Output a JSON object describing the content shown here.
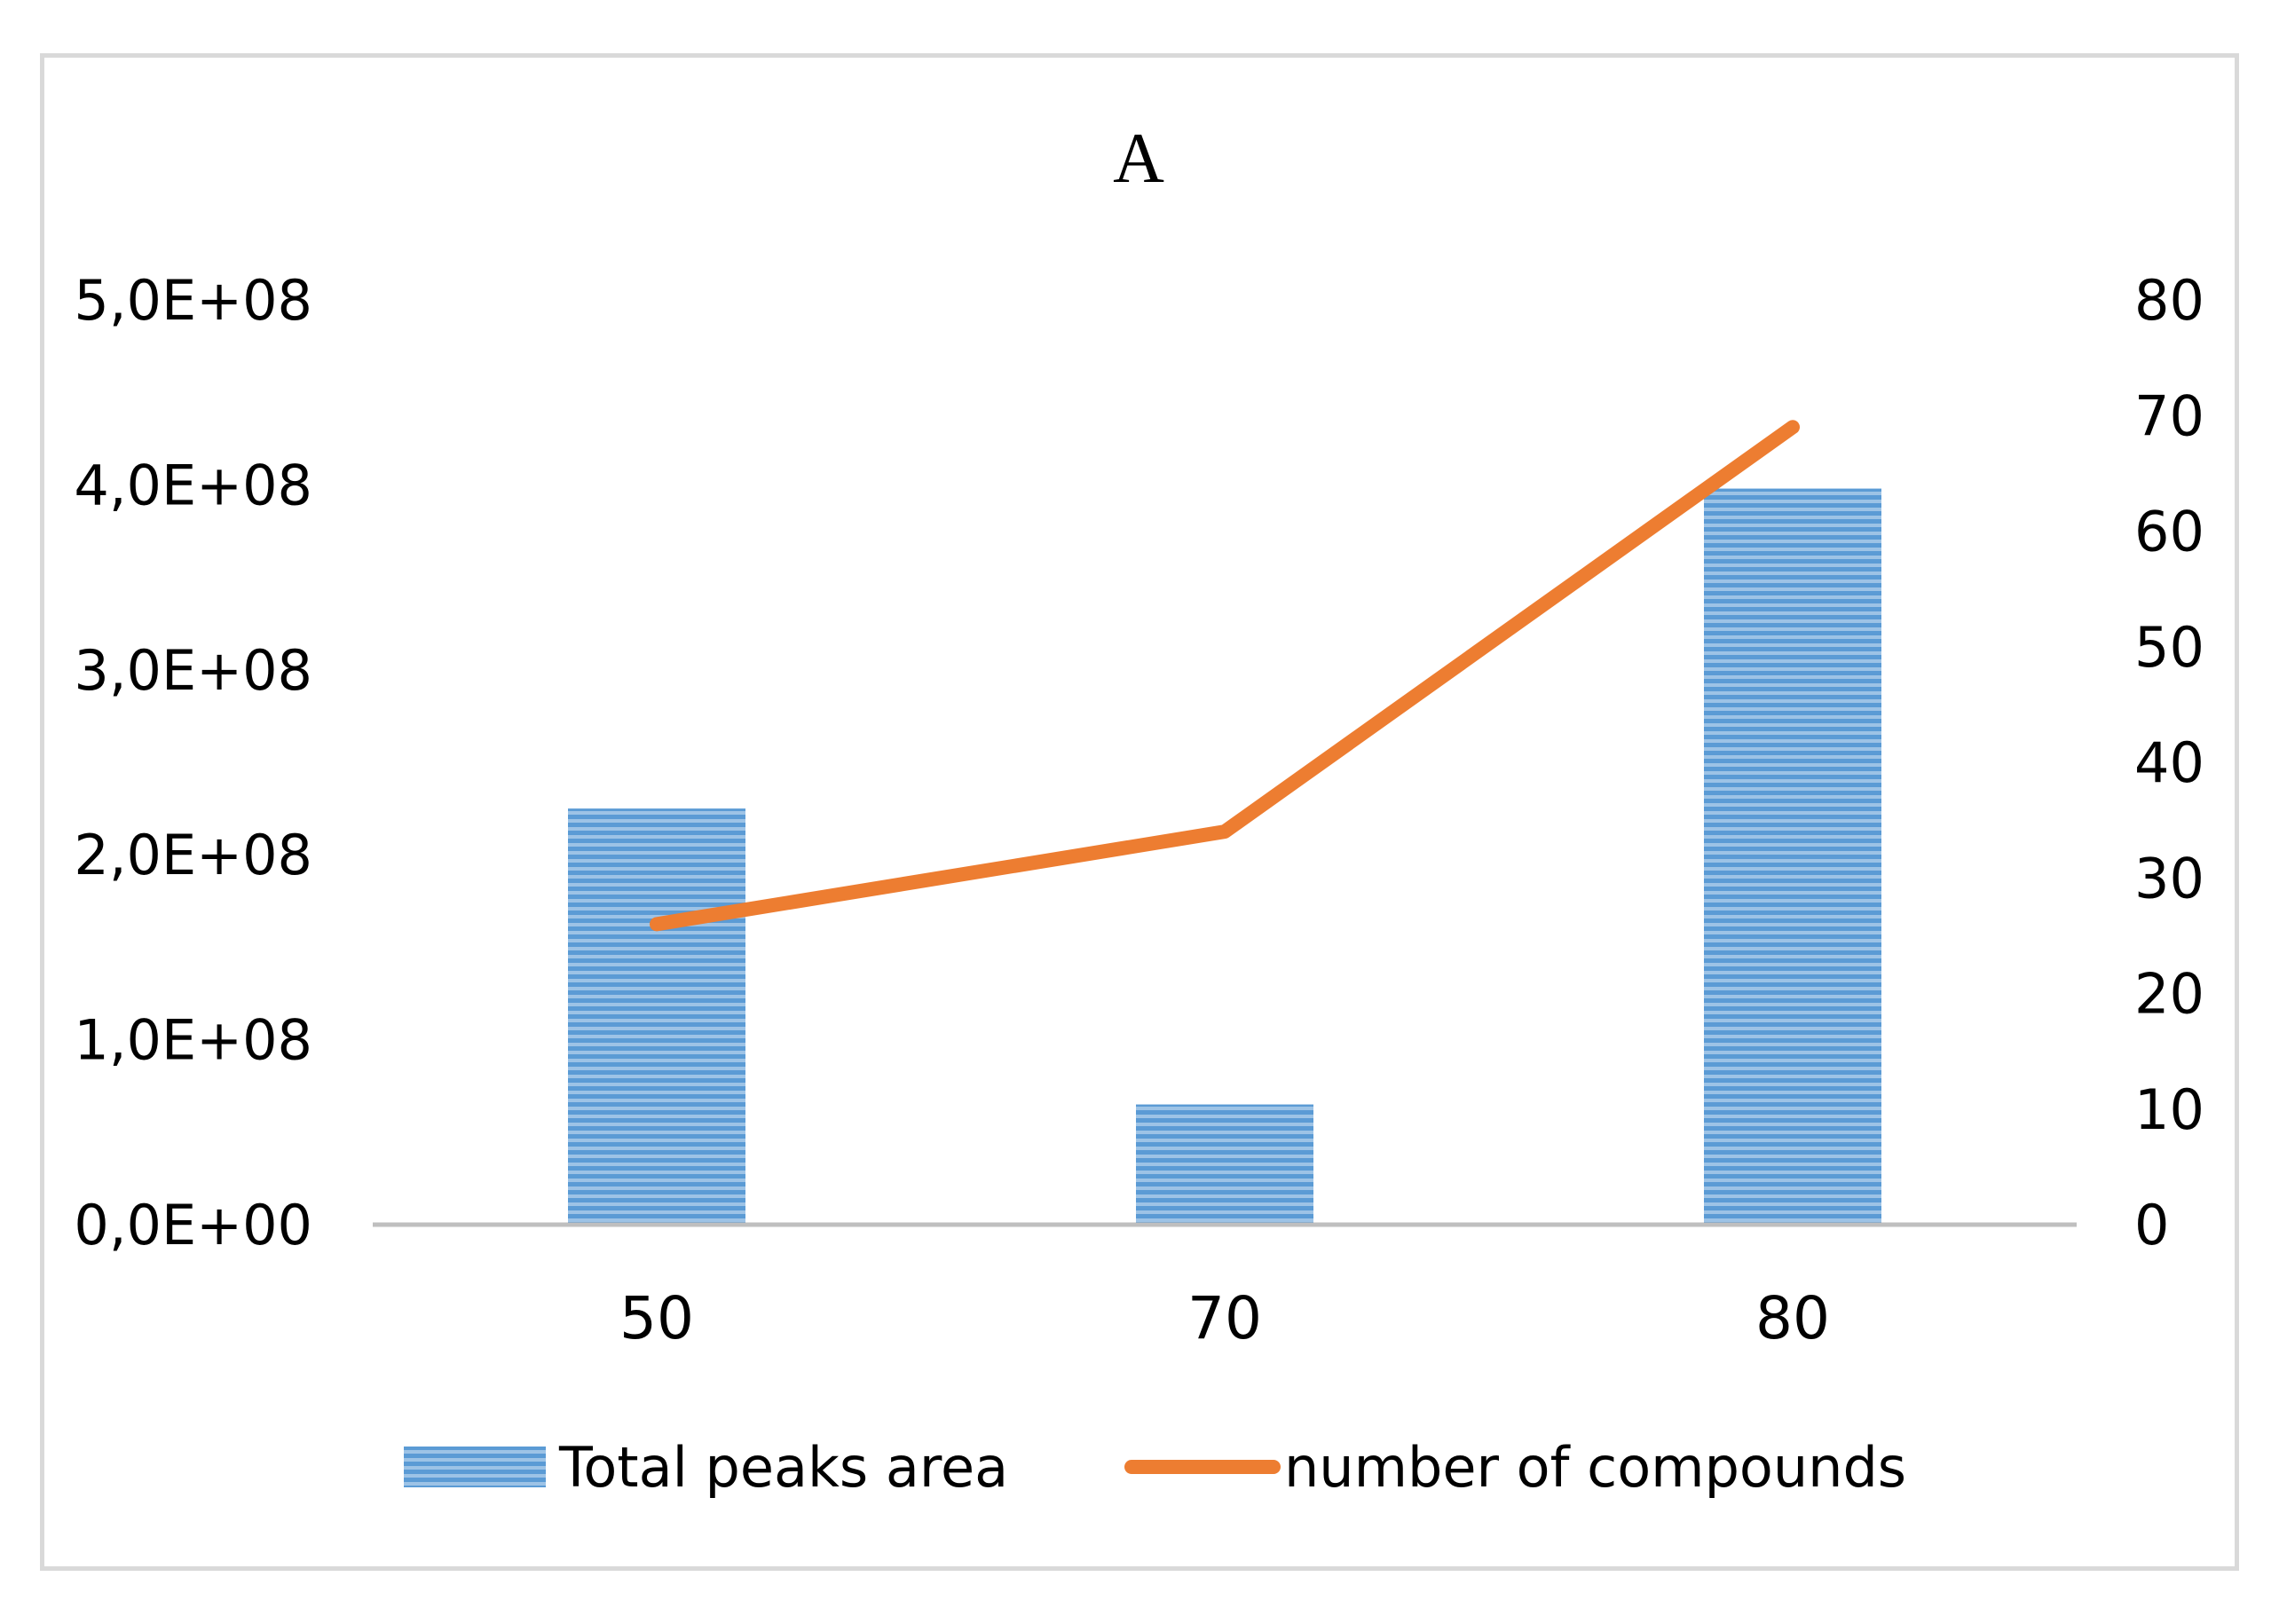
{
  "chart_data": {
    "type": "bar",
    "title": "A",
    "categories": [
      "50",
      "70",
      "80"
    ],
    "series": [
      {
        "name": "Total peaks area",
        "type": "bar",
        "axis": "left",
        "values": [
          225000000,
          65000000,
          398000000
        ]
      },
      {
        "name": "number of compounds",
        "type": "line",
        "axis": "right",
        "values": [
          26,
          34,
          69
        ]
      }
    ],
    "y_left": {
      "ylim": [
        0,
        500000000
      ],
      "tick_labels": [
        "0,0E+00",
        "1,0E+08",
        "2,0E+08",
        "3,0E+08",
        "4,0E+08",
        "5,0E+08"
      ]
    },
    "y_right": {
      "ylim": [
        0,
        80
      ],
      "tick_labels": [
        "0",
        "10",
        "20",
        "30",
        "40",
        "50",
        "60",
        "70",
        "80"
      ]
    },
    "xlabel": "",
    "grid": false,
    "legend_position": "bottom",
    "colors": {
      "bar": "#5b9bd5",
      "bar_stripe": "#9dc3e6",
      "line": "#ed7d31",
      "axis": "#bfbfbf",
      "frame": "#d9d9d9",
      "text": "#000000"
    }
  }
}
